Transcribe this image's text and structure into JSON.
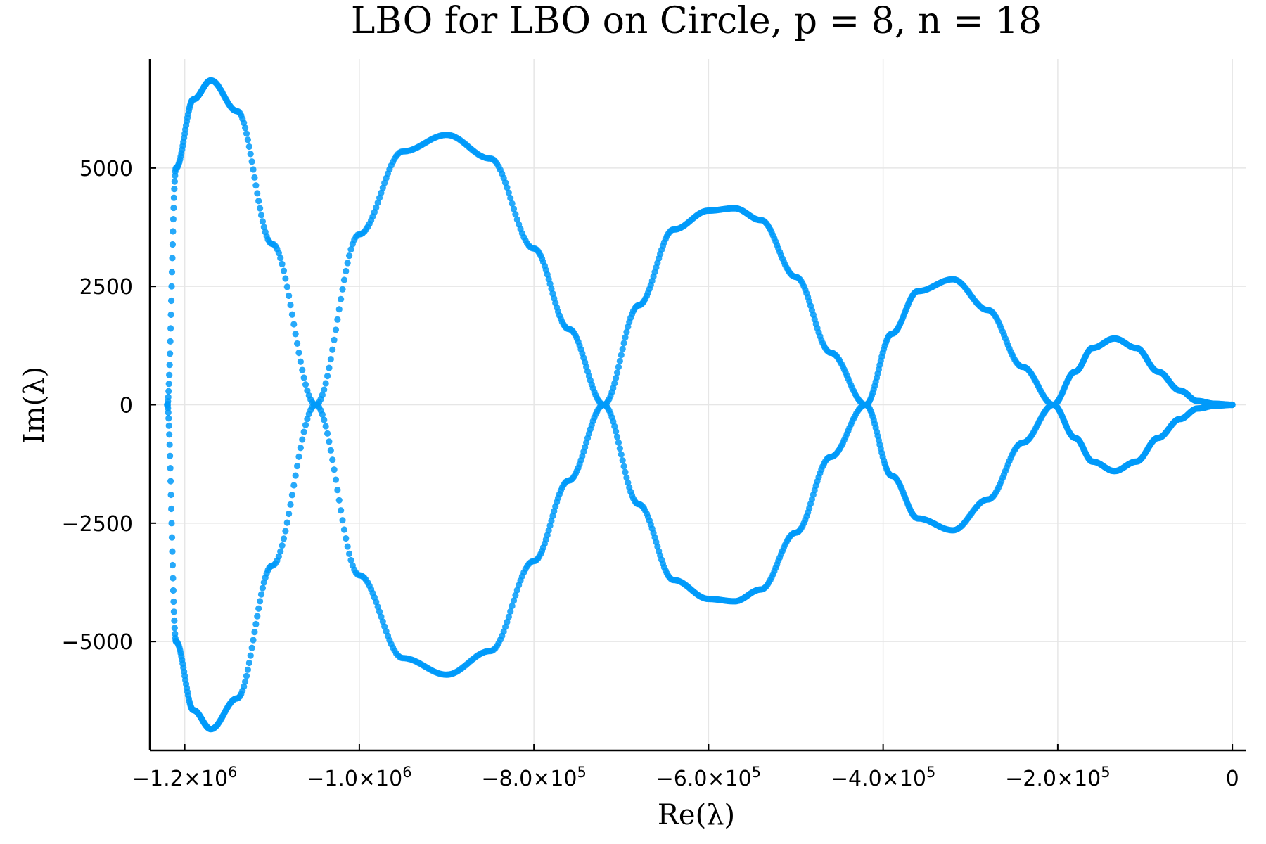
{
  "chart_data": {
    "type": "scatter",
    "title": "LBO for LBO on Circle, p = 8, n = 18",
    "xlabel": "Re(λ)",
    "ylabel": "Im(λ)",
    "xlim": [
      -1240000,
      16000
    ],
    "ylim": [
      -7300,
      7300
    ],
    "grid": true,
    "legend": "none",
    "marker_color": "#009AF9",
    "x_ticks": [
      {
        "value": -1200000,
        "mantissa": "−1.2×10",
        "exponent": "6"
      },
      {
        "value": -1000000,
        "mantissa": "−1.0×10",
        "exponent": "6"
      },
      {
        "value": -800000,
        "mantissa": "−8.0×10",
        "exponent": "5"
      },
      {
        "value": -600000,
        "mantissa": "−6.0×10",
        "exponent": "5"
      },
      {
        "value": -400000,
        "mantissa": "−4.0×10",
        "exponent": "5"
      },
      {
        "value": -200000,
        "mantissa": "−2.0×10",
        "exponent": "5"
      },
      {
        "value": 0,
        "mantissa": "0",
        "exponent": ""
      }
    ],
    "y_ticks": [
      {
        "value": 5000,
        "label": "5000"
      },
      {
        "value": 2500,
        "label": "2500"
      },
      {
        "value": 0,
        "label": "0"
      },
      {
        "value": -2500,
        "label": "−2500"
      },
      {
        "value": -5000,
        "label": "−5000"
      }
    ],
    "series": [
      {
        "x": [
          -1220000,
          -1210000,
          -1190000,
          -1170000,
          -1140000,
          -1100000,
          -1050000,
          -1000000,
          -950000,
          -900000,
          -850000,
          -800000,
          -760000,
          -720000,
          -680000,
          -640000,
          -600000,
          -570000,
          -540000,
          -500000,
          -460000,
          -420000,
          -390000,
          -360000,
          -320000,
          -280000,
          -240000,
          -205000,
          -180000,
          -160000,
          -135000,
          -110000,
          -85000,
          -60000,
          -40000,
          -20000,
          0
        ],
        "y": [
          0,
          5000,
          6450,
          6850,
          6200,
          3400,
          0,
          3600,
          5350,
          5700,
          5200,
          3300,
          1600,
          0,
          2100,
          3700,
          4100,
          4150,
          3900,
          2700,
          1100,
          0,
          1500,
          2400,
          2650,
          2000,
          800,
          0,
          700,
          1200,
          1400,
          1200,
          700,
          300,
          80,
          20,
          0
        ]
      },
      {
        "x": [
          -1220000,
          -1210000,
          -1190000,
          -1170000,
          -1140000,
          -1100000,
          -1050000,
          -1000000,
          -950000,
          -900000,
          -850000,
          -800000,
          -760000,
          -720000,
          -680000,
          -640000,
          -600000,
          -570000,
          -540000,
          -500000,
          -460000,
          -420000,
          -390000,
          -360000,
          -320000,
          -280000,
          -240000,
          -205000,
          -180000,
          -160000,
          -135000,
          -110000,
          -85000,
          -60000,
          -40000,
          -20000,
          0
        ],
        "y": [
          0,
          -5000,
          -6450,
          -6850,
          -6200,
          -3400,
          0,
          -3600,
          -5350,
          -5700,
          -5200,
          -3300,
          -1600,
          0,
          -2100,
          -3700,
          -4100,
          -4150,
          -3900,
          -2700,
          -1100,
          0,
          -1500,
          -2400,
          -2650,
          -2000,
          -800,
          0,
          -700,
          -1200,
          -1400,
          -1200,
          -700,
          -300,
          -80,
          -20,
          0
        ]
      }
    ]
  }
}
